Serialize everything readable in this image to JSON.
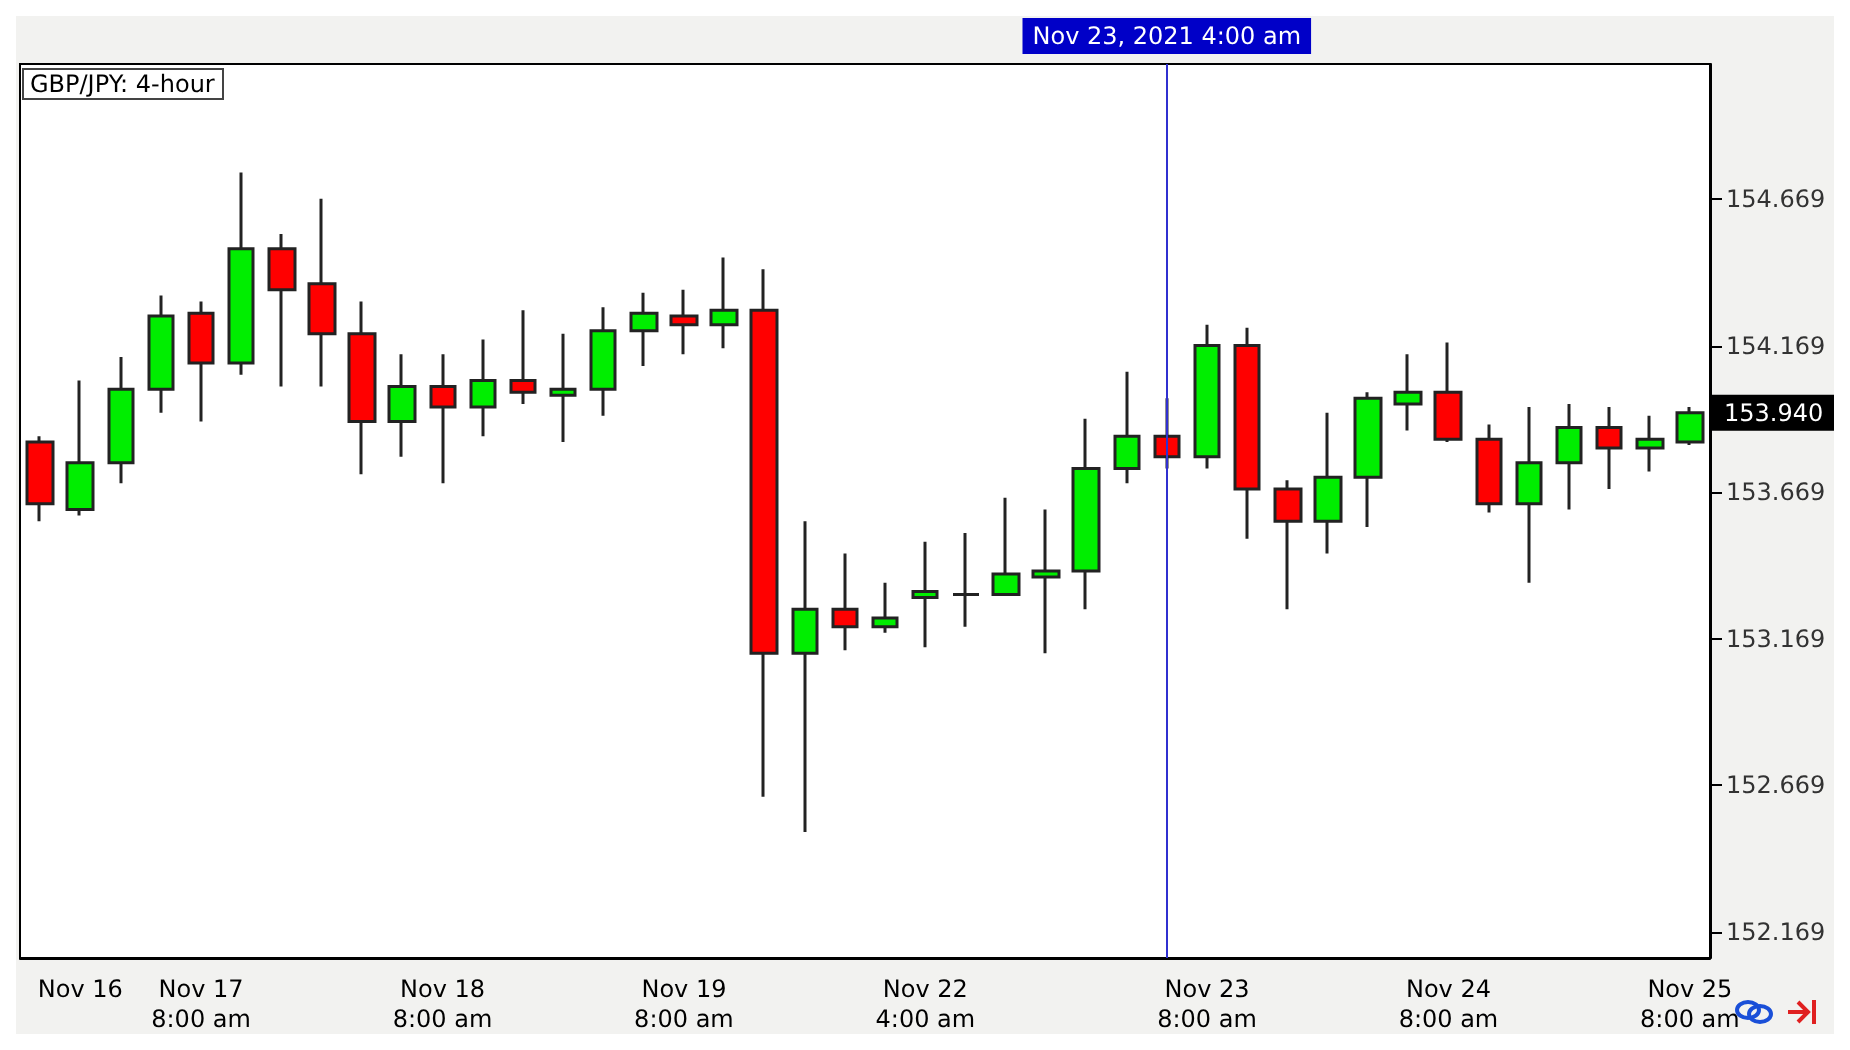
{
  "chart_data": {
    "type": "candlestick",
    "title": "GBP/JPY: 4-hour",
    "categories": [
      null,
      "Nov 16",
      null,
      null,
      "Nov 17\n8:00 am",
      null,
      null,
      null,
      null,
      null,
      "Nov 18\n8:00 am",
      null,
      null,
      null,
      null,
      null,
      "Nov 19\n8:00 am",
      null,
      null,
      null,
      null,
      null,
      "Nov 22\n4:00 am",
      null,
      null,
      null,
      null,
      null,
      null,
      "Nov 23\n8:00 am",
      null,
      null,
      null,
      null,
      null,
      "Nov 24\n8:00 am",
      null,
      null,
      null,
      null,
      null,
      "Nov 25\n8:00 am"
    ],
    "ohlc": [
      [
        153.84,
        153.86,
        153.57,
        153.63
      ],
      [
        153.61,
        154.05,
        153.59,
        153.77
      ],
      [
        153.77,
        154.13,
        153.7,
        154.02
      ],
      [
        154.02,
        154.34,
        153.94,
        154.27
      ],
      [
        154.28,
        154.32,
        153.91,
        154.11
      ],
      [
        154.11,
        154.76,
        154.07,
        154.5
      ],
      [
        154.5,
        154.55,
        154.03,
        154.36
      ],
      [
        154.38,
        154.67,
        154.03,
        154.21
      ],
      [
        154.21,
        154.32,
        153.73,
        153.91
      ],
      [
        153.91,
        154.14,
        153.79,
        154.03
      ],
      [
        154.03,
        154.14,
        153.7,
        153.96
      ],
      [
        153.96,
        154.19,
        153.86,
        154.05
      ],
      [
        154.05,
        154.29,
        153.97,
        154.01
      ],
      [
        154.0,
        154.21,
        153.84,
        154.02
      ],
      [
        154.02,
        154.3,
        153.93,
        154.22
      ],
      [
        154.22,
        154.35,
        154.1,
        154.28
      ],
      [
        154.27,
        154.36,
        154.14,
        154.24
      ],
      [
        154.24,
        154.47,
        154.16,
        154.29
      ],
      [
        154.29,
        154.43,
        152.63,
        153.12
      ],
      [
        153.12,
        153.57,
        152.51,
        153.27
      ],
      [
        153.27,
        153.46,
        153.13,
        153.21
      ],
      [
        153.21,
        153.36,
        153.19,
        153.24
      ],
      [
        153.31,
        153.5,
        153.14,
        153.33
      ],
      [
        153.32,
        153.53,
        153.21,
        153.32
      ],
      [
        153.32,
        153.65,
        153.32,
        153.39
      ],
      [
        153.38,
        153.61,
        153.12,
        153.4
      ],
      [
        153.4,
        153.92,
        153.27,
        153.75
      ],
      [
        153.75,
        154.08,
        153.7,
        153.86
      ],
      [
        153.86,
        153.99,
        153.75,
        153.79
      ],
      [
        153.79,
        154.24,
        153.75,
        154.17
      ],
      [
        154.17,
        154.23,
        153.51,
        153.68
      ],
      [
        153.68,
        153.71,
        153.27,
        153.57
      ],
      [
        153.57,
        153.94,
        153.46,
        153.72
      ],
      [
        153.72,
        154.01,
        153.55,
        153.99
      ],
      [
        153.97,
        154.14,
        153.88,
        154.01
      ],
      [
        154.01,
        154.18,
        153.84,
        153.85
      ],
      [
        153.85,
        153.9,
        153.6,
        153.63
      ],
      [
        153.63,
        153.96,
        153.36,
        153.77
      ],
      [
        153.77,
        153.97,
        153.61,
        153.89
      ],
      [
        153.89,
        153.96,
        153.68,
        153.82
      ],
      [
        153.82,
        153.93,
        153.74,
        153.85
      ],
      [
        153.84,
        153.96,
        153.83,
        153.94
      ]
    ],
    "ylim": [
      152.08,
      155.13
    ],
    "yticks": [
      152.169,
      152.669,
      153.169,
      153.669,
      154.169,
      154.669
    ],
    "annotations": [
      "Nov 23, 2021 4:00 am",
      "153.940"
    ]
  }
}
